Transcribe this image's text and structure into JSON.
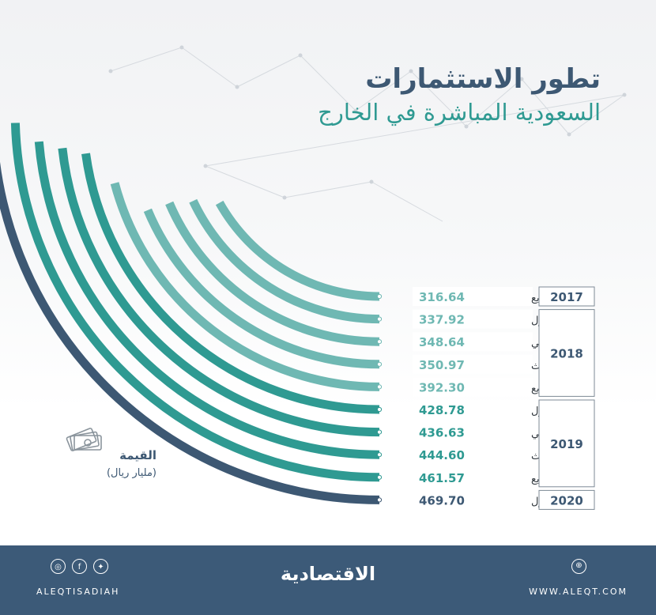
{
  "header": {
    "title_line1": "تطور الاستثمارات",
    "title_line2": "السعودية المباشرة في الخارج"
  },
  "legend": {
    "label": "القيمة",
    "unit": "(مليار ريال)",
    "icon": "money-bills-icon"
  },
  "colors": {
    "navy": "#3d5873",
    "teal": "#2f9a92",
    "tealLight": "#6fb8b3",
    "divider": "#7d8a96"
  },
  "chart_data": {
    "type": "bar",
    "shape": "radial",
    "categories": [
      {
        "year": "2017",
        "quarter": "الربع الرابع"
      },
      {
        "year": "2018",
        "quarter": "الربع الأول"
      },
      {
        "year": "2018",
        "quarter": "الربع الثاني"
      },
      {
        "year": "2018",
        "quarter": "الربع الثالث"
      },
      {
        "year": "2018",
        "quarter": "الربع الرابع"
      },
      {
        "year": "2019",
        "quarter": "الربع الأول"
      },
      {
        "year": "2019",
        "quarter": "الربع الثاني"
      },
      {
        "year": "2019",
        "quarter": "الربع الثالث"
      },
      {
        "year": "2019",
        "quarter": "الربع الرابع"
      },
      {
        "year": "2020",
        "quarter": "الربع الأول"
      }
    ],
    "values": [
      316.64,
      337.92,
      348.64,
      350.97,
      392.3,
      428.78,
      436.63,
      444.6,
      461.57,
      469.7
    ],
    "value_labels": [
      "316.64",
      "337.92",
      "348.64",
      "350.97",
      "392.30",
      "428.78",
      "436.63",
      "444.60",
      "461.57",
      "469.70"
    ],
    "year_groups": [
      "2017",
      "2018",
      "2019",
      "2020"
    ]
  },
  "footer": {
    "handle": "ALEQTISADIAH",
    "site": "WWW.ALEQT.COM",
    "brand": "الاقتصادية",
    "icons": [
      "instagram-icon",
      "facebook-icon",
      "twitter-icon",
      "globe-icon"
    ]
  }
}
